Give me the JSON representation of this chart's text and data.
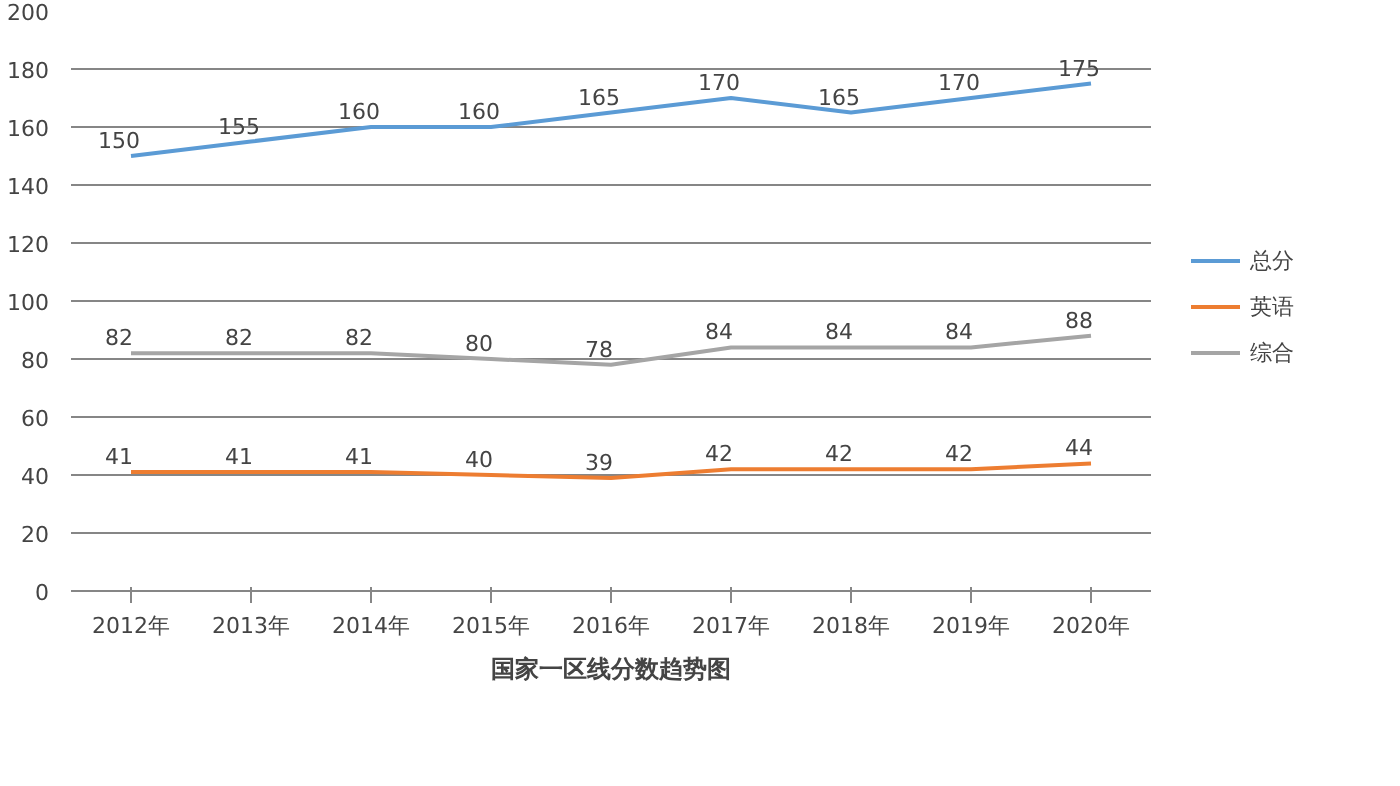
{
  "chart_data": {
    "type": "line",
    "xlabel": "国家一区线分数趋势图",
    "categories": [
      "2012年",
      "2013年",
      "2014年",
      "2015年",
      "2016年",
      "2017年",
      "2018年",
      "2019年",
      "2020年"
    ],
    "series": [
      {
        "name": "总分",
        "color": "#5b9bd5",
        "values": [
          150,
          155,
          160,
          160,
          165,
          170,
          165,
          170,
          175
        ]
      },
      {
        "name": "英语",
        "color": "#ed7d31",
        "values": [
          41,
          41,
          41,
          40,
          39,
          42,
          42,
          42,
          44
        ]
      },
      {
        "name": "综合",
        "color": "#a5a5a5",
        "values": [
          82,
          82,
          82,
          80,
          78,
          84,
          84,
          84,
          88
        ]
      }
    ],
    "ylim": [
      0,
      200
    ],
    "yticks": [
      0,
      20,
      40,
      60,
      80,
      100,
      120,
      140,
      160,
      180,
      200
    ],
    "grid": "y",
    "legend": "right",
    "data_labels": true,
    "marker": "none",
    "line_style": "solid"
  }
}
